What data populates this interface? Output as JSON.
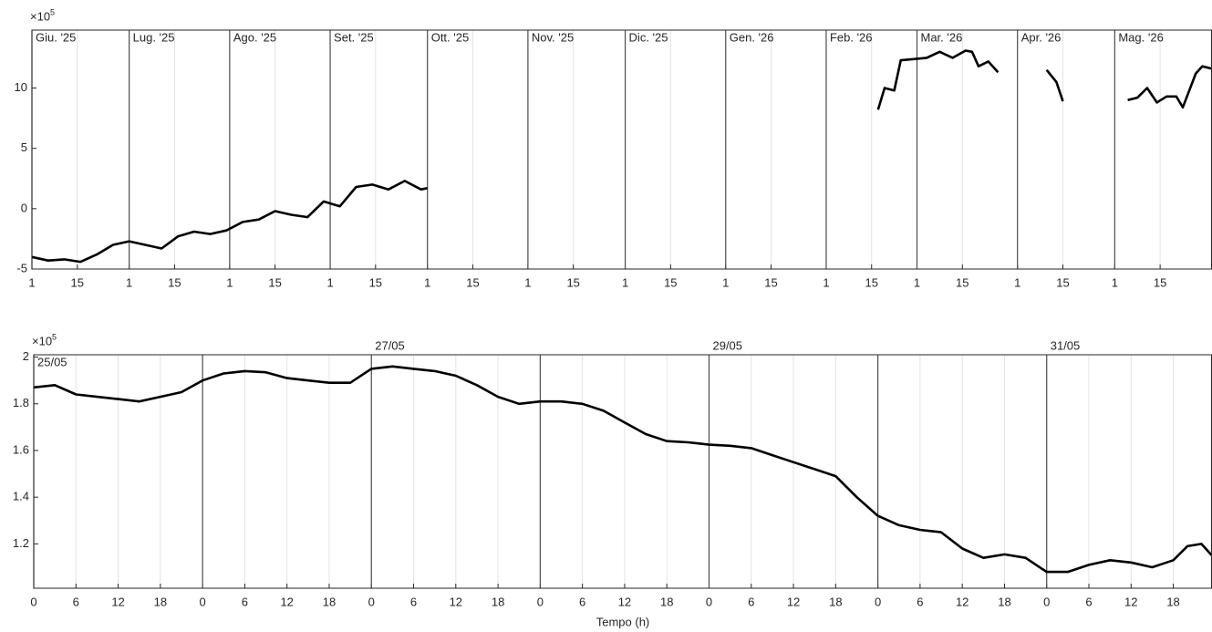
{
  "chart_data": [
    {
      "type": "line",
      "y_multiplier": "×10",
      "y_exponent": "5",
      "xlim": [
        0,
        364
      ],
      "ylim": [
        -5,
        14.8
      ],
      "yticks": [
        -5,
        0,
        5,
        10
      ],
      "xticks": [
        {
          "value": 0,
          "label": "1"
        },
        {
          "value": 14,
          "label": "15"
        },
        {
          "value": 30,
          "label": "1"
        },
        {
          "value": 44,
          "label": "15"
        },
        {
          "value": 61,
          "label": "1"
        },
        {
          "value": 75,
          "label": "15"
        },
        {
          "value": 92,
          "label": "1"
        },
        {
          "value": 106,
          "label": "15"
        },
        {
          "value": 122,
          "label": "1"
        },
        {
          "value": 136,
          "label": "15"
        },
        {
          "value": 153,
          "label": "1"
        },
        {
          "value": 167,
          "label": "15"
        },
        {
          "value": 183,
          "label": "1"
        },
        {
          "value": 197,
          "label": "15"
        },
        {
          "value": 214,
          "label": "1"
        },
        {
          "value": 228,
          "label": "15"
        },
        {
          "value": 245,
          "label": "1"
        },
        {
          "value": 259,
          "label": "15"
        },
        {
          "value": 273,
          "label": "1"
        },
        {
          "value": 287,
          "label": "15"
        },
        {
          "value": 304,
          "label": "1"
        },
        {
          "value": 318,
          "label": "15"
        },
        {
          "value": 334,
          "label": "1"
        },
        {
          "value": 348,
          "label": "15"
        }
      ],
      "period_labels": [
        {
          "value": 0,
          "label": "Giu. '25"
        },
        {
          "value": 30,
          "label": "Lug. '25"
        },
        {
          "value": 61,
          "label": "Ago. '25"
        },
        {
          "value": 92,
          "label": "Set. '25"
        },
        {
          "value": 122,
          "label": "Ott. '25"
        },
        {
          "value": 153,
          "label": "Nov. '25"
        },
        {
          "value": 183,
          "label": "Dic. '25"
        },
        {
          "value": 214,
          "label": "Gen. '26"
        },
        {
          "value": 245,
          "label": "Feb. '26"
        },
        {
          "value": 273,
          "label": "Mar. '26"
        },
        {
          "value": 304,
          "label": "Apr. '26"
        },
        {
          "value": 334,
          "label": "Mag. '26"
        }
      ],
      "x": [
        0,
        5,
        10,
        15,
        20,
        25,
        30,
        35,
        40,
        45,
        50,
        55,
        60,
        65,
        70,
        75,
        80,
        85,
        90,
        95,
        100,
        105,
        110,
        115,
        120,
        122,
        190,
        261,
        263,
        266,
        268,
        272,
        276,
        280,
        284,
        288,
        290,
        292,
        295,
        298,
        306,
        313,
        316,
        318,
        328,
        338,
        341,
        344,
        347,
        350,
        353,
        355,
        357,
        359,
        361,
        364
      ],
      "series": [
        {
          "name": "series",
          "color": "#000000",
          "values": [
            -4.0,
            -4.3,
            -4.2,
            -4.4,
            -3.8,
            -3.0,
            -2.7,
            -3.0,
            -3.3,
            -2.3,
            -1.9,
            -2.1,
            -1.8,
            -1.1,
            -0.9,
            -0.2,
            -0.5,
            -0.7,
            0.6,
            0.2,
            1.8,
            2.0,
            1.6,
            2.3,
            1.6,
            1.7,
            null,
            8.2,
            10.0,
            9.8,
            12.3,
            12.4,
            12.5,
            13.0,
            12.5,
            13.1,
            13.0,
            11.8,
            12.2,
            11.3,
            null,
            11.5,
            10.5,
            8.9,
            null,
            9.0,
            9.2,
            10.0,
            8.8,
            9.3,
            9.3,
            8.4,
            9.8,
            11.2,
            11.8,
            11.6
          ]
        }
      ]
    },
    {
      "type": "line",
      "y_multiplier": "×10",
      "y_exponent": "5",
      "xlabel": "Tempo (h)",
      "xlim": [
        0,
        167.5
      ],
      "ylim": [
        1.01,
        2.01
      ],
      "yticks": [
        {
          "value": 1.2,
          "label": "1.2"
        },
        {
          "value": 1.4,
          "label": "1.4"
        },
        {
          "value": 1.6,
          "label": "1.6"
        },
        {
          "value": 1.8,
          "label": "1.8"
        },
        2
      ],
      "xticks": [
        0,
        6,
        12,
        18,
        {
          "value": 24,
          "label": "0"
        },
        {
          "value": 30,
          "label": "6"
        },
        {
          "value": 36,
          "label": "12"
        },
        {
          "value": 42,
          "label": "18"
        },
        {
          "value": 48,
          "label": "0"
        },
        {
          "value": 54,
          "label": "6"
        },
        {
          "value": 60,
          "label": "12"
        },
        {
          "value": 66,
          "label": "18"
        },
        {
          "value": 72,
          "label": "0"
        },
        {
          "value": 78,
          "label": "6"
        },
        {
          "value": 84,
          "label": "12"
        },
        {
          "value": 90,
          "label": "18"
        },
        {
          "value": 96,
          "label": "0"
        },
        {
          "value": 102,
          "label": "6"
        },
        {
          "value": 108,
          "label": "12"
        },
        {
          "value": 114,
          "label": "18"
        },
        {
          "value": 120,
          "label": "0"
        },
        {
          "value": 126,
          "label": "6"
        },
        {
          "value": 132,
          "label": "12"
        },
        {
          "value": 138,
          "label": "18"
        },
        {
          "value": 144,
          "label": "0"
        },
        {
          "value": 150,
          "label": "6"
        },
        {
          "value": 156,
          "label": "12"
        },
        {
          "value": 162,
          "label": "18"
        }
      ],
      "period_lines": [
        0,
        24,
        48,
        72,
        96,
        120,
        144
      ],
      "period_labels": [
        {
          "value": 0,
          "label": "25/05"
        },
        {
          "value": 48,
          "label": "27/05"
        },
        {
          "value": 96,
          "label": "29/05"
        },
        {
          "value": 144,
          "label": "31/05"
        }
      ],
      "x": [
        0,
        3,
        6,
        9,
        12,
        15,
        18,
        21,
        24,
        27,
        30,
        33,
        36,
        39,
        42,
        45,
        48,
        51,
        54,
        57,
        60,
        63,
        66,
        69,
        72,
        75,
        78,
        81,
        84,
        87,
        90,
        93,
        96,
        99,
        102,
        105,
        108,
        111,
        114,
        117,
        120,
        123,
        126,
        129,
        132,
        135,
        138,
        141,
        144,
        147,
        150,
        153,
        156,
        159,
        162,
        164,
        166,
        167.5
      ],
      "series": [
        {
          "name": "series",
          "color": "#000000",
          "values": [
            1.87,
            1.88,
            1.84,
            1.83,
            1.82,
            1.81,
            1.83,
            1.85,
            1.9,
            1.93,
            1.94,
            1.935,
            1.91,
            1.9,
            1.89,
            1.89,
            1.95,
            1.96,
            1.95,
            1.94,
            1.92,
            1.88,
            1.83,
            1.8,
            1.81,
            1.81,
            1.8,
            1.77,
            1.72,
            1.67,
            1.64,
            1.635,
            1.625,
            1.62,
            1.61,
            1.58,
            1.55,
            1.52,
            1.49,
            1.4,
            1.32,
            1.28,
            1.26,
            1.25,
            1.18,
            1.14,
            1.155,
            1.14,
            1.08,
            1.08,
            1.11,
            1.13,
            1.12,
            1.1,
            1.13,
            1.19,
            1.2,
            1.15
          ]
        }
      ]
    }
  ]
}
